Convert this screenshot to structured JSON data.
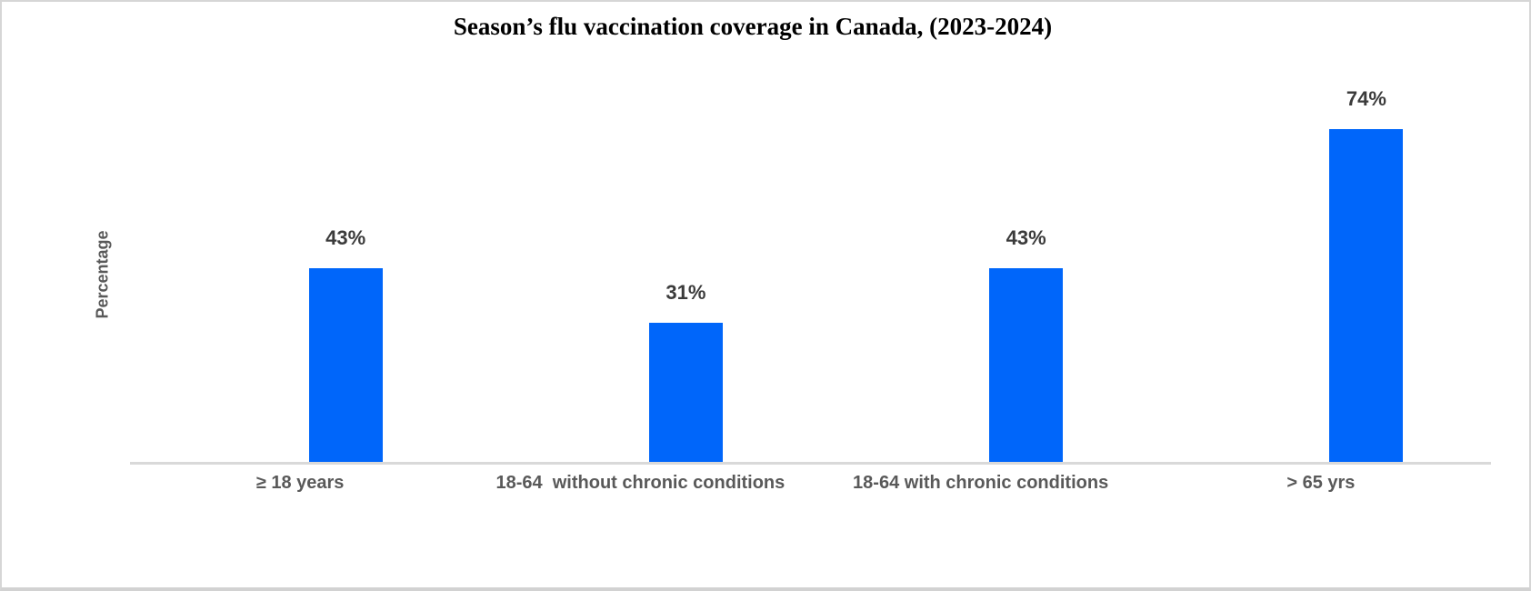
{
  "page": {
    "background": "#ffffff",
    "border_color": "#d6d6d6"
  },
  "chart_data": {
    "type": "bar",
    "title": "Season’s flu vaccination coverage in Canada, (2023-2024)",
    "categories": [
      "≥ 18 years",
      "18-64  without chronic conditions",
      "18-64 with chronic conditions",
      "> 65 yrs"
    ],
    "values": [
      43,
      31,
      43,
      74
    ],
    "data_labels": [
      "43%",
      "31%",
      "43%",
      "74%"
    ],
    "xlabel": "",
    "ylabel": "Percentage",
    "ylim": [
      0,
      100
    ],
    "grid": false,
    "legend": false,
    "y_axis_ticks_visible": false,
    "bar_color": "#0066fa",
    "data_label_color": "#3b3b3b",
    "axis_text_color": "#595959",
    "axis_line_color": "#d9d9d9"
  }
}
